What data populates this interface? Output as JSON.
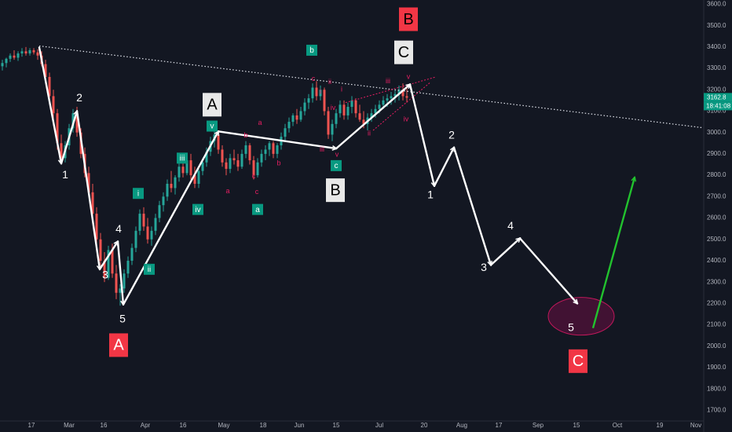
{
  "chart_data": {
    "type": "candlestick",
    "title": "",
    "ylim": [
      1650,
      3620
    ],
    "y_ticks": [
      1700,
      1800,
      1900,
      2000,
      2100,
      2200,
      2300,
      2400,
      2500,
      2600,
      2700,
      2800,
      2900,
      3000,
      3100,
      3200,
      3300,
      3400,
      3500,
      3600
    ],
    "y_tick_labels": [
      "1700.0",
      "1800.0",
      "1900.0",
      "2000.0",
      "2100.0",
      "2200.0",
      "2300.0",
      "2400.0",
      "2500.0",
      "2600.0",
      "2700.0",
      "2800.0",
      "2900.0",
      "3000.0",
      "3100.0",
      "3200.0",
      "3300.0",
      "3400.0",
      "3500.0",
      "3600.0"
    ],
    "x_ticks": [
      "17",
      "Mar",
      "16",
      "Apr",
      "16",
      "May",
      "18",
      "Jun",
      "15",
      "Jul",
      "20",
      "Aug",
      "17",
      "Sep",
      "15",
      "Oct",
      "19",
      "Nov"
    ],
    "price_label": "3162.8",
    "countdown_label": "18:41:08",
    "grid": false,
    "candles": [
      {
        "x": 3,
        "o": 3310,
        "h": 3340,
        "l": 3290,
        "c": 3325
      },
      {
        "x": 8,
        "o": 3325,
        "h": 3350,
        "l": 3305,
        "c": 3345
      },
      {
        "x": 13,
        "o": 3345,
        "h": 3370,
        "l": 3330,
        "c": 3360
      },
      {
        "x": 18,
        "o": 3360,
        "h": 3385,
        "l": 3340,
        "c": 3350
      },
      {
        "x": 23,
        "o": 3350,
        "h": 3380,
        "l": 3335,
        "c": 3370
      },
      {
        "x": 28,
        "o": 3370,
        "h": 3395,
        "l": 3355,
        "c": 3380
      },
      {
        "x": 33,
        "o": 3380,
        "h": 3400,
        "l": 3360,
        "c": 3370
      },
      {
        "x": 38,
        "o": 3370,
        "h": 3395,
        "l": 3360,
        "c": 3385
      },
      {
        "x": 43,
        "o": 3385,
        "h": 3395,
        "l": 3365,
        "c": 3375
      },
      {
        "x": 48,
        "o": 3375,
        "h": 3390,
        "l": 3340,
        "c": 3360
      },
      {
        "x": 53,
        "o": 3360,
        "h": 3380,
        "l": 3310,
        "c": 3320
      },
      {
        "x": 58,
        "o": 3320,
        "h": 3340,
        "l": 3240,
        "c": 3260
      },
      {
        "x": 63,
        "o": 3260,
        "h": 3280,
        "l": 3150,
        "c": 3170
      },
      {
        "x": 68,
        "o": 3170,
        "h": 3200,
        "l": 3060,
        "c": 3090
      },
      {
        "x": 73,
        "o": 3090,
        "h": 3110,
        "l": 2920,
        "c": 2950
      },
      {
        "x": 78,
        "o": 2950,
        "h": 2990,
        "l": 2850,
        "c": 2880
      },
      {
        "x": 83,
        "o": 2880,
        "h": 2960,
        "l": 2860,
        "c": 2940
      },
      {
        "x": 88,
        "o": 2940,
        "h": 3040,
        "l": 2920,
        "c": 3020
      },
      {
        "x": 93,
        "o": 3020,
        "h": 3110,
        "l": 3000,
        "c": 3090
      },
      {
        "x": 98,
        "o": 3090,
        "h": 3120,
        "l": 2980,
        "c": 3000
      },
      {
        "x": 103,
        "o": 3000,
        "h": 3020,
        "l": 2880,
        "c": 2900
      },
      {
        "x": 108,
        "o": 2900,
        "h": 2930,
        "l": 2790,
        "c": 2810
      },
      {
        "x": 113,
        "o": 2810,
        "h": 2840,
        "l": 2700,
        "c": 2720
      },
      {
        "x": 118,
        "o": 2720,
        "h": 2760,
        "l": 2600,
        "c": 2620
      },
      {
        "x": 123,
        "o": 2620,
        "h": 2650,
        "l": 2480,
        "c": 2500
      },
      {
        "x": 128,
        "o": 2500,
        "h": 2530,
        "l": 2380,
        "c": 2400
      },
      {
        "x": 133,
        "o": 2400,
        "h": 2440,
        "l": 2300,
        "c": 2320
      },
      {
        "x": 138,
        "o": 2320,
        "h": 2470,
        "l": 2310,
        "c": 2450
      },
      {
        "x": 143,
        "o": 2450,
        "h": 2480,
        "l": 2320,
        "c": 2340
      },
      {
        "x": 148,
        "o": 2340,
        "h": 2380,
        "l": 2220,
        "c": 2250
      },
      {
        "x": 153,
        "o": 2250,
        "h": 2290,
        "l": 2190,
        "c": 2270
      },
      {
        "x": 158,
        "o": 2270,
        "h": 2360,
        "l": 2250,
        "c": 2340
      },
      {
        "x": 163,
        "o": 2340,
        "h": 2420,
        "l": 2320,
        "c": 2400
      },
      {
        "x": 168,
        "o": 2400,
        "h": 2480,
        "l": 2380,
        "c": 2460
      },
      {
        "x": 173,
        "o": 2460,
        "h": 2560,
        "l": 2440,
        "c": 2540
      },
      {
        "x": 178,
        "o": 2540,
        "h": 2640,
        "l": 2520,
        "c": 2620
      },
      {
        "x": 183,
        "o": 2620,
        "h": 2650,
        "l": 2540,
        "c": 2560
      },
      {
        "x": 188,
        "o": 2560,
        "h": 2600,
        "l": 2480,
        "c": 2500
      },
      {
        "x": 193,
        "o": 2500,
        "h": 2560,
        "l": 2470,
        "c": 2540
      },
      {
        "x": 198,
        "o": 2540,
        "h": 2620,
        "l": 2520,
        "c": 2600
      },
      {
        "x": 203,
        "o": 2600,
        "h": 2680,
        "l": 2580,
        "c": 2660
      },
      {
        "x": 208,
        "o": 2660,
        "h": 2720,
        "l": 2630,
        "c": 2700
      },
      {
        "x": 213,
        "o": 2700,
        "h": 2780,
        "l": 2680,
        "c": 2760
      },
      {
        "x": 218,
        "o": 2760,
        "h": 2820,
        "l": 2720,
        "c": 2740
      },
      {
        "x": 223,
        "o": 2740,
        "h": 2800,
        "l": 2710,
        "c": 2790
      },
      {
        "x": 228,
        "o": 2790,
        "h": 2860,
        "l": 2770,
        "c": 2840
      },
      {
        "x": 233,
        "o": 2840,
        "h": 2880,
        "l": 2790,
        "c": 2810
      },
      {
        "x": 238,
        "o": 2810,
        "h": 2890,
        "l": 2800,
        "c": 2870
      },
      {
        "x": 243,
        "o": 2870,
        "h": 2900,
        "l": 2780,
        "c": 2800
      },
      {
        "x": 248,
        "o": 2800,
        "h": 2840,
        "l": 2740,
        "c": 2760
      },
      {
        "x": 253,
        "o": 2760,
        "h": 2830,
        "l": 2740,
        "c": 2820
      },
      {
        "x": 258,
        "o": 2820,
        "h": 2880,
        "l": 2800,
        "c": 2860
      },
      {
        "x": 263,
        "o": 2860,
        "h": 2930,
        "l": 2840,
        "c": 2910
      },
      {
        "x": 268,
        "o": 2910,
        "h": 2980,
        "l": 2890,
        "c": 2960
      },
      {
        "x": 273,
        "o": 2960,
        "h": 3010,
        "l": 2930,
        "c": 2990
      },
      {
        "x": 278,
        "o": 2990,
        "h": 3000,
        "l": 2900,
        "c": 2920
      },
      {
        "x": 283,
        "o": 2920,
        "h": 2940,
        "l": 2840,
        "c": 2860
      },
      {
        "x": 288,
        "o": 2860,
        "h": 2880,
        "l": 2800,
        "c": 2830
      },
      {
        "x": 293,
        "o": 2830,
        "h": 2900,
        "l": 2810,
        "c": 2880
      },
      {
        "x": 298,
        "o": 2880,
        "h": 2920,
        "l": 2850,
        "c": 2870
      },
      {
        "x": 303,
        "o": 2870,
        "h": 2900,
        "l": 2820,
        "c": 2840
      },
      {
        "x": 308,
        "o": 2840,
        "h": 2920,
        "l": 2830,
        "c": 2900
      },
      {
        "x": 313,
        "o": 2900,
        "h": 2960,
        "l": 2880,
        "c": 2940
      },
      {
        "x": 318,
        "o": 2940,
        "h": 2950,
        "l": 2850,
        "c": 2870
      },
      {
        "x": 323,
        "o": 2870,
        "h": 2890,
        "l": 2780,
        "c": 2800
      },
      {
        "x": 328,
        "o": 2800,
        "h": 2880,
        "l": 2790,
        "c": 2860
      },
      {
        "x": 333,
        "o": 2860,
        "h": 2920,
        "l": 2840,
        "c": 2900
      },
      {
        "x": 338,
        "o": 2900,
        "h": 2940,
        "l": 2870,
        "c": 2920
      },
      {
        "x": 343,
        "o": 2920,
        "h": 2960,
        "l": 2890,
        "c": 2950
      },
      {
        "x": 348,
        "o": 2950,
        "h": 2960,
        "l": 2880,
        "c": 2900
      },
      {
        "x": 353,
        "o": 2900,
        "h": 2950,
        "l": 2880,
        "c": 2940
      },
      {
        "x": 358,
        "o": 2940,
        "h": 3000,
        "l": 2920,
        "c": 2980
      },
      {
        "x": 363,
        "o": 2980,
        "h": 3040,
        "l": 2960,
        "c": 3020
      },
      {
        "x": 368,
        "o": 3020,
        "h": 3070,
        "l": 3000,
        "c": 3050
      },
      {
        "x": 373,
        "o": 3050,
        "h": 3090,
        "l": 3030,
        "c": 3080
      },
      {
        "x": 378,
        "o": 3080,
        "h": 3110,
        "l": 3040,
        "c": 3060
      },
      {
        "x": 383,
        "o": 3060,
        "h": 3120,
        "l": 3050,
        "c": 3100
      },
      {
        "x": 388,
        "o": 3100,
        "h": 3160,
        "l": 3080,
        "c": 3140
      },
      {
        "x": 393,
        "o": 3140,
        "h": 3180,
        "l": 3110,
        "c": 3160
      },
      {
        "x": 398,
        "o": 3160,
        "h": 3230,
        "l": 3140,
        "c": 3210
      },
      {
        "x": 403,
        "o": 3210,
        "h": 3240,
        "l": 3150,
        "c": 3170
      },
      {
        "x": 408,
        "o": 3170,
        "h": 3220,
        "l": 3150,
        "c": 3200
      },
      {
        "x": 413,
        "o": 3200,
        "h": 3210,
        "l": 3080,
        "c": 3100
      },
      {
        "x": 418,
        "o": 3100,
        "h": 3120,
        "l": 2970,
        "c": 2990
      },
      {
        "x": 423,
        "o": 2990,
        "h": 3060,
        "l": 2960,
        "c": 3040
      },
      {
        "x": 428,
        "o": 3040,
        "h": 3110,
        "l": 3020,
        "c": 3090
      },
      {
        "x": 433,
        "o": 3090,
        "h": 3150,
        "l": 3070,
        "c": 3130
      },
      {
        "x": 438,
        "o": 3130,
        "h": 3150,
        "l": 3060,
        "c": 3080
      },
      {
        "x": 443,
        "o": 3080,
        "h": 3140,
        "l": 3060,
        "c": 3120
      },
      {
        "x": 448,
        "o": 3120,
        "h": 3170,
        "l": 3090,
        "c": 3150
      },
      {
        "x": 453,
        "o": 3150,
        "h": 3160,
        "l": 3070,
        "c": 3090
      },
      {
        "x": 458,
        "o": 3090,
        "h": 3130,
        "l": 3050,
        "c": 3060
      },
      {
        "x": 463,
        "o": 3060,
        "h": 3100,
        "l": 3020,
        "c": 3040
      },
      {
        "x": 468,
        "o": 3040,
        "h": 3090,
        "l": 3010,
        "c": 3070
      },
      {
        "x": 473,
        "o": 3070,
        "h": 3110,
        "l": 3050,
        "c": 3090
      },
      {
        "x": 478,
        "o": 3090,
        "h": 3130,
        "l": 3070,
        "c": 3110
      },
      {
        "x": 483,
        "o": 3110,
        "h": 3150,
        "l": 3090,
        "c": 3130
      },
      {
        "x": 488,
        "o": 3130,
        "h": 3170,
        "l": 3110,
        "c": 3150
      },
      {
        "x": 493,
        "o": 3150,
        "h": 3180,
        "l": 3120,
        "c": 3160
      },
      {
        "x": 498,
        "o": 3160,
        "h": 3190,
        "l": 3130,
        "c": 3170
      },
      {
        "x": 503,
        "o": 3170,
        "h": 3200,
        "l": 3140,
        "c": 3180
      },
      {
        "x": 508,
        "o": 3180,
        "h": 3220,
        "l": 3150,
        "c": 3200
      },
      {
        "x": 513,
        "o": 3200,
        "h": 3230,
        "l": 3150,
        "c": 3170
      },
      {
        "x": 518,
        "o": 3170,
        "h": 3220,
        "l": 3140,
        "c": 3162.8
      }
    ]
  },
  "trendline": {
    "x1": 50,
    "y1": 3405,
    "x2": 900,
    "y2": 3020,
    "color": "#e0e3eb"
  },
  "main_path": {
    "color": "#ffffff",
    "points": [
      [
        50,
        3398
      ],
      [
        78,
        2855
      ],
      [
        98,
        3100
      ],
      [
        127,
        2360
      ],
      [
        150,
        2490
      ],
      [
        157,
        2195
      ],
      [
        278,
        3005
      ],
      [
        428,
        2925
      ],
      [
        522,
        3225
      ],
      [
        553,
        2750
      ],
      [
        578,
        2930
      ],
      [
        625,
        2380
      ],
      [
        662,
        2505
      ],
      [
        735,
        2200
      ]
    ]
  },
  "projection_arrows": {
    "color": "#ffffff"
  },
  "green_arrow": {
    "x1": 755,
    "y1": 2085,
    "x2": 808,
    "y2": 2790,
    "color": "#22c22e"
  },
  "target_ellipse": {
    "cx": 740,
    "cy": 2140,
    "rx": 42,
    "ry": 24,
    "color": "#4a1236",
    "stroke": "#c2185b"
  },
  "wave_labels": [
    {
      "text": "1",
      "x": 83,
      "y": 2800
    },
    {
      "text": "2",
      "x": 101,
      "y": 3160
    },
    {
      "text": "3",
      "x": 134,
      "y": 2330
    },
    {
      "text": "4",
      "x": 151,
      "y": 2545
    },
    {
      "text": "5",
      "x": 156,
      "y": 2125
    },
    {
      "text": "1",
      "x": 548,
      "y": 2705
    },
    {
      "text": "2",
      "x": 575,
      "y": 2985
    },
    {
      "text": "3",
      "x": 616,
      "y": 2365
    },
    {
      "text": "4",
      "x": 650,
      "y": 2560
    },
    {
      "text": "5",
      "x": 727,
      "y": 2085
    }
  ],
  "big_labels": [
    {
      "text": "A",
      "x": 151,
      "y": 2005,
      "bg": "#f23645",
      "fg": "#ffffff"
    },
    {
      "text": "B",
      "x": 520,
      "y": 3530,
      "bg": "#f23645",
      "fg": "#000000"
    },
    {
      "text": "C",
      "x": 736,
      "y": 1930,
      "bg": "#f23645",
      "fg": "#ffffff"
    },
    {
      "text": "A",
      "x": 270,
      "y": 3130,
      "bg": "#e8e8e8",
      "fg": "#000000"
    },
    {
      "text": "B",
      "x": 427,
      "y": 2730,
      "bg": "#e8e8e8",
      "fg": "#000000"
    },
    {
      "text": "C",
      "x": 514,
      "y": 3375,
      "bg": "#e8e8e8",
      "fg": "#000000"
    }
  ],
  "teal_labels": [
    {
      "text": "i",
      "x": 176,
      "y": 2715
    },
    {
      "text": "ii",
      "x": 190,
      "y": 2360
    },
    {
      "text": "iii",
      "x": 232,
      "y": 2880
    },
    {
      "text": "iv",
      "x": 252,
      "y": 2640
    },
    {
      "text": "v",
      "x": 270,
      "y": 3030
    },
    {
      "text": "a",
      "x": 328,
      "y": 2640
    },
    {
      "text": "b",
      "x": 397,
      "y": 3385
    },
    {
      "text": "c",
      "x": 428,
      "y": 2845
    }
  ],
  "sub_labels": [
    {
      "text": "a",
      "x": 290,
      "y": 2725
    },
    {
      "text": "b",
      "x": 313,
      "y": 2985
    },
    {
      "text": "a",
      "x": 331,
      "y": 3045
    },
    {
      "text": "c",
      "x": 327,
      "y": 2720
    },
    {
      "text": "b",
      "x": 355,
      "y": 2855
    },
    {
      "text": "c",
      "x": 323,
      "y": 2795
    },
    {
      "text": "c",
      "x": 399,
      "y": 3250
    },
    {
      "text": "i",
      "x": 408,
      "y": 3190
    },
    {
      "text": "ii",
      "x": 420,
      "y": 3235
    },
    {
      "text": "iii",
      "x": 410,
      "y": 2920
    },
    {
      "text": "iv",
      "x": 424,
      "y": 3115
    },
    {
      "text": "v",
      "x": 429,
      "y": 2895
    },
    {
      "text": "i",
      "x": 435,
      "y": 3200
    },
    {
      "text": "ii",
      "x": 470,
      "y": 2995
    },
    {
      "text": "iii",
      "x": 494,
      "y": 3240
    },
    {
      "text": "iv",
      "x": 517,
      "y": 3060
    },
    {
      "text": "v",
      "x": 520,
      "y": 3260
    }
  ],
  "triangle": {
    "color": "#e91e63",
    "upper": [
      [
        440,
        3140
      ],
      [
        555,
        3260
      ]
    ],
    "lower": [
      [
        475,
        3010
      ],
      [
        548,
        3235
      ]
    ]
  }
}
